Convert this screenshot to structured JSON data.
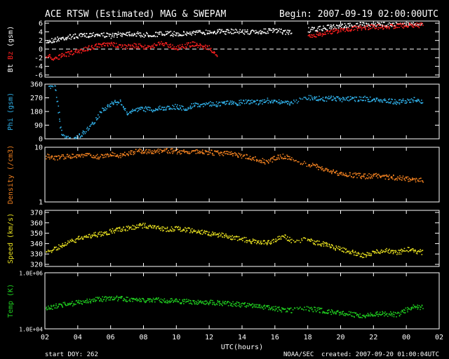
{
  "header": {
    "title": "ACE RTSW (Estimated) MAG & SWEPAM",
    "begin": "Begin: 2007-09-19 02:00:00UTC"
  },
  "footer": {
    "start_doy": "start DOY: 262",
    "xlabel": "UTC(hours)",
    "agency": "NOAA/SEC",
    "created": "created: 2007-09-20 01:00:04UTC"
  },
  "colors": {
    "bt": "#ffffff",
    "bz": "#ff2020",
    "phi": "#30b0e8",
    "density": "#f08020",
    "speed": "#e8e020",
    "temp": "#20d020"
  },
  "chart_data": [
    {
      "type": "scatter",
      "panel": "mag",
      "ylabel_parts": [
        "Bt",
        "Bz",
        "(gsm)"
      ],
      "ylim": [
        -6.5,
        6.5
      ],
      "yticks": [
        "6",
        "4",
        "2",
        "0",
        "-2",
        "-4",
        "-6"
      ],
      "zero_line": true,
      "xlim": [
        2,
        26
      ],
      "xticks": [
        "02",
        "04",
        "06",
        "08",
        "10",
        "12",
        "14",
        "16",
        "18",
        "20",
        "22",
        "00",
        "02"
      ],
      "series": [
        {
          "name": "Bt",
          "color_key": "bt",
          "x": [
            2.0,
            2.5,
            3.0,
            3.5,
            4.0,
            4.5,
            5.0,
            5.5,
            6.0,
            6.5,
            7.0,
            7.5,
            8.0,
            8.5,
            9.0,
            9.5,
            10.0,
            10.5,
            11.0,
            11.5,
            12.0,
            12.5,
            13.0,
            13.5,
            14.0,
            14.5,
            15.0,
            15.5,
            16.0,
            16.5,
            17.0,
            17.5,
            18.0,
            18.5,
            19.0,
            19.5,
            20.0,
            20.5,
            21.0,
            21.5,
            22.0,
            22.5,
            23.0,
            23.5,
            24.0,
            24.5,
            25.0
          ],
          "y": [
            1.8,
            2.2,
            2.6,
            3.0,
            3.1,
            3.3,
            3.6,
            3.4,
            3.2,
            3.5,
            3.8,
            3.6,
            3.4,
            3.5,
            3.6,
            3.7,
            3.6,
            3.7,
            3.9,
            4.0,
            4.1,
            4.2,
            4.1,
            4.3,
            4.2,
            4.0,
            4.1,
            4.3,
            4.4,
            4.1,
            4.0,
            null,
            4.5,
            4.7,
            5.0,
            5.3,
            5.5,
            5.6,
            5.7,
            5.8,
            5.9,
            5.8,
            5.9,
            6.0,
            6.0,
            6.1,
            6.1
          ]
        },
        {
          "name": "Bz",
          "color_key": "bz",
          "x": [
            2.0,
            2.5,
            3.0,
            3.5,
            4.0,
            4.5,
            5.0,
            5.5,
            6.0,
            6.5,
            7.0,
            7.5,
            8.0,
            8.5,
            9.0,
            9.5,
            10.0,
            10.5,
            11.0,
            11.5,
            12.0,
            12.5,
            13.0,
            13.5,
            14.0,
            14.5,
            15.0,
            15.5,
            16.0,
            16.5,
            17.0,
            17.5,
            18.0,
            18.5,
            19.0,
            19.5,
            20.0,
            20.5,
            21.0,
            21.5,
            22.0,
            22.5,
            23.0,
            23.5,
            24.0,
            24.5,
            25.0
          ],
          "y": [
            -1.2,
            -2.0,
            -1.5,
            -0.8,
            -0.5,
            0.2,
            0.8,
            1.0,
            1.2,
            0.9,
            0.6,
            1.0,
            0.5,
            0.8,
            1.5,
            1.0,
            0.4,
            0.9,
            1.3,
            0.8,
            0.3,
            -2.0,
            null,
            null,
            null,
            null,
            null,
            null,
            null,
            null,
            null,
            null,
            3.2,
            3.5,
            3.8,
            4.2,
            4.5,
            4.8,
            5.0,
            5.1,
            5.3,
            5.2,
            5.4,
            5.5,
            5.6,
            5.6,
            5.7
          ]
        }
      ]
    },
    {
      "type": "scatter",
      "panel": "phi",
      "ylabel": "Phi (gsm)",
      "ylim": [
        0,
        360
      ],
      "yticks": [
        "360",
        "270",
        "180",
        "90",
        "0"
      ],
      "xlim": [
        2,
        26
      ],
      "series": [
        {
          "name": "Phi",
          "color_key": "phi",
          "x": [
            2.2,
            2.6,
            3.0,
            3.5,
            4.0,
            4.5,
            5.0,
            5.5,
            6.0,
            6.5,
            7.0,
            7.5,
            8.0,
            8.5,
            9.0,
            9.5,
            10.0,
            10.5,
            11.0,
            11.5,
            12.0,
            12.5,
            13.0,
            13.5,
            14.0,
            14.5,
            15.0,
            15.5,
            16.0,
            16.5,
            17.0,
            18.0,
            18.5,
            19.0,
            19.5,
            20.0,
            20.5,
            21.0,
            21.5,
            22.0,
            22.5,
            23.0,
            23.5,
            24.0,
            24.5,
            25.0
          ],
          "y": [
            350,
            355,
            20,
            5,
            15,
            60,
            120,
            200,
            230,
            250,
            170,
            190,
            200,
            195,
            205,
            210,
            215,
            200,
            225,
            230,
            235,
            230,
            240,
            235,
            245,
            250,
            240,
            255,
            250,
            245,
            240,
            275,
            270,
            265,
            270,
            262,
            268,
            265,
            270,
            255,
            260,
            250,
            245,
            255,
            260,
            250
          ]
        }
      ]
    },
    {
      "type": "scatter",
      "panel": "density",
      "ylabel": "Density (/cm3)",
      "scale": "log",
      "ylim": [
        1,
        10
      ],
      "yticks": [
        "10",
        "1"
      ],
      "xlim": [
        2,
        26
      ],
      "series": [
        {
          "name": "Density",
          "color_key": "density",
          "x": [
            2.0,
            2.5,
            3.0,
            3.5,
            4.0,
            4.5,
            5.0,
            5.5,
            6.0,
            6.5,
            7.0,
            7.5,
            8.0,
            8.5,
            9.0,
            9.5,
            10.0,
            10.5,
            11.0,
            11.5,
            12.0,
            12.5,
            13.0,
            13.5,
            14.0,
            14.5,
            15.0,
            15.5,
            16.0,
            16.5,
            17.0,
            18.0,
            18.5,
            19.0,
            19.5,
            20.0,
            20.5,
            21.0,
            21.5,
            22.0,
            22.5,
            23.0,
            23.5,
            24.0,
            24.5,
            25.0
          ],
          "y": [
            7.0,
            6.5,
            6.8,
            7.0,
            7.2,
            7.3,
            7.0,
            6.8,
            7.5,
            7.0,
            8.0,
            8.5,
            8.7,
            8.5,
            8.6,
            8.8,
            8.5,
            8.6,
            8.4,
            8.3,
            8.2,
            8.0,
            7.8,
            7.5,
            7.0,
            6.5,
            6.0,
            5.5,
            6.5,
            7.0,
            6.0,
            5.0,
            4.5,
            4.0,
            3.6,
            3.3,
            3.2,
            3.1,
            3.0,
            3.1,
            3.0,
            2.9,
            2.8,
            2.7,
            2.6,
            2.5
          ]
        }
      ]
    },
    {
      "type": "scatter",
      "panel": "speed",
      "ylabel": "Speed (km/s)",
      "ylim": [
        318,
        372
      ],
      "yticks": [
        "370",
        "360",
        "350",
        "340",
        "330",
        "320"
      ],
      "xlim": [
        2,
        26
      ],
      "series": [
        {
          "name": "Speed",
          "color_key": "speed",
          "x": [
            2.0,
            2.5,
            3.0,
            3.5,
            4.0,
            4.5,
            5.0,
            5.5,
            6.0,
            6.5,
            7.0,
            7.5,
            8.0,
            8.5,
            9.0,
            9.5,
            10.0,
            10.5,
            11.0,
            11.5,
            12.0,
            12.5,
            13.0,
            13.5,
            14.0,
            14.5,
            15.0,
            15.5,
            16.0,
            16.5,
            17.0,
            18.0,
            18.5,
            19.0,
            19.5,
            20.0,
            20.5,
            21.0,
            21.5,
            22.0,
            22.5,
            23.0,
            23.5,
            24.0,
            24.5,
            25.0
          ],
          "y": [
            332,
            335,
            338,
            342,
            345,
            347,
            349,
            350,
            352,
            354,
            355,
            357,
            358,
            357,
            355,
            354,
            355,
            354,
            353,
            352,
            350,
            349,
            348,
            346,
            345,
            343,
            342,
            341,
            344,
            348,
            343,
            344,
            341,
            340,
            337,
            335,
            333,
            330,
            329,
            332,
            334,
            333,
            332,
            335,
            333,
            332
          ]
        }
      ]
    },
    {
      "type": "scatter",
      "panel": "temp",
      "ylabel": "Temp (K)",
      "scale": "log",
      "ylim": [
        10000,
        1000000
      ],
      "yticks": [
        "1.0E+06",
        "1.0E+04"
      ],
      "xlim": [
        2,
        26
      ],
      "series": [
        {
          "name": "Temp",
          "color_key": "temp",
          "x": [
            2.0,
            2.5,
            3.0,
            3.5,
            4.0,
            4.5,
            5.0,
            5.5,
            6.0,
            6.5,
            7.0,
            7.5,
            8.0,
            8.5,
            9.0,
            9.5,
            10.0,
            10.5,
            11.0,
            11.5,
            12.0,
            12.5,
            13.0,
            13.5,
            14.0,
            14.5,
            15.0,
            15.5,
            16.0,
            16.5,
            17.0,
            18.0,
            18.5,
            19.0,
            19.5,
            20.0,
            20.5,
            21.0,
            21.5,
            22.0,
            22.5,
            23.0,
            23.5,
            24.0,
            24.5,
            25.0
          ],
          "y": [
            55000,
            65000,
            75000,
            80000,
            90000,
            100000,
            115000,
            120000,
            130000,
            125000,
            115000,
            110000,
            105000,
            108000,
            110000,
            105000,
            100000,
            98000,
            95000,
            92000,
            90000,
            88000,
            85000,
            80000,
            75000,
            70000,
            65000,
            60000,
            55000,
            50000,
            48000,
            55000,
            50000,
            45000,
            40000,
            38000,
            35000,
            32000,
            30000,
            33000,
            36000,
            35000,
            34000,
            50000,
            65000,
            60000
          ]
        }
      ]
    }
  ]
}
